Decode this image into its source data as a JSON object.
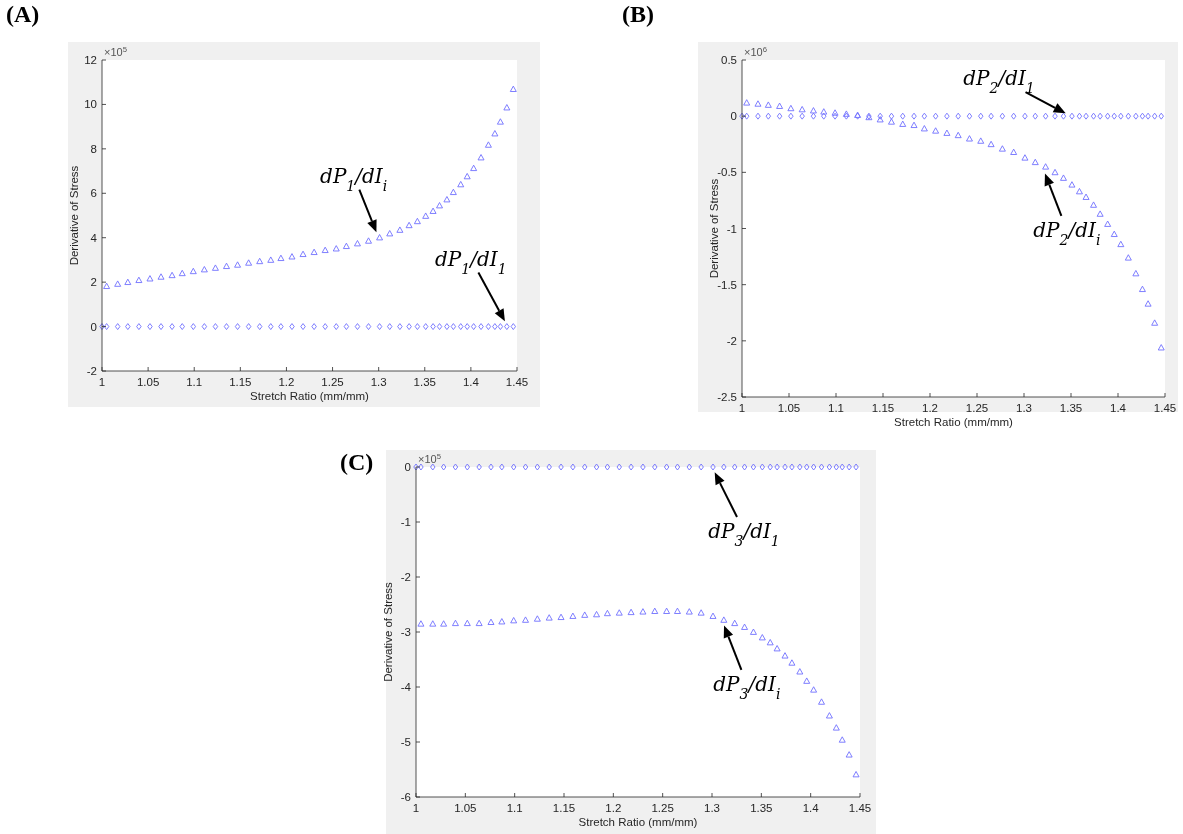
{
  "chart_data": [
    {
      "type": "scatter",
      "title": "(A)",
      "xlabel": "Stretch Ratio (mm/mm)",
      "ylabel": "Derivative of Stress",
      "annotations": [
        "×10$^{5}$",
        {
          "text": "dP$_{1}$/dI$_{i}$",
          "x": 1.3,
          "y": 4.0
        },
        {
          "text": "dP$_{1}$/dI$_{1}$",
          "x": 1.44,
          "y": 0
        }
      ],
      "x": [
        1.005,
        1.017,
        1.028,
        1.04,
        1.052,
        1.064,
        1.076,
        1.087,
        1.099,
        1.111,
        1.123,
        1.135,
        1.147,
        1.159,
        1.171,
        1.183,
        1.194,
        1.206,
        1.218,
        1.23,
        1.242,
        1.254,
        1.265,
        1.277,
        1.289,
        1.301,
        1.312,
        1.323,
        1.333,
        1.342,
        1.351,
        1.359,
        1.366,
        1.374,
        1.381,
        1.389,
        1.396,
        1.403,
        1.411,
        1.419,
        1.426,
        1.432,
        1.439,
        1.446
      ],
      "series": [
        {
          "color": "#7070ff",
          "marker": "triangle",
          "values": [
            1.82,
            1.92,
            2.0,
            2.09,
            2.16,
            2.24,
            2.31,
            2.4,
            2.49,
            2.57,
            2.64,
            2.72,
            2.78,
            2.87,
            2.94,
            3.0,
            3.08,
            3.15,
            3.26,
            3.35,
            3.44,
            3.51,
            3.62,
            3.74,
            3.86,
            4.01,
            4.19,
            4.35,
            4.56,
            4.74,
            4.98,
            5.2,
            5.45,
            5.72,
            6.05,
            6.4,
            6.76,
            7.13,
            7.61,
            8.18,
            8.69,
            9.22,
            9.86,
            10.69
          ]
        },
        {
          "color": "#7070ff",
          "marker": "diamond",
          "x": [
            1.0,
            1.005,
            1.017,
            1.028,
            1.04,
            1.052,
            1.064,
            1.076,
            1.087,
            1.099,
            1.111,
            1.123,
            1.135,
            1.147,
            1.159,
            1.171,
            1.183,
            1.194,
            1.206,
            1.218,
            1.23,
            1.242,
            1.254,
            1.265,
            1.277,
            1.289,
            1.301,
            1.312,
            1.323,
            1.333,
            1.342,
            1.351,
            1.359,
            1.366,
            1.374,
            1.381,
            1.389,
            1.396,
            1.403,
            1.411,
            1.419,
            1.426,
            1.432,
            1.439,
            1.446
          ],
          "values": [
            0,
            0,
            0,
            0,
            0,
            0,
            0,
            0,
            0,
            0,
            0,
            0,
            0,
            0,
            0,
            0,
            0,
            0,
            0,
            0,
            0,
            0,
            0,
            0,
            0,
            0,
            0,
            0,
            0,
            0,
            0,
            0,
            0,
            0,
            0,
            0,
            0,
            0,
            0,
            0,
            0,
            0,
            0,
            0,
            0
          ]
        }
      ],
      "xlim": [
        1,
        1.45
      ],
      "xticks": [
        1,
        1.05,
        1.1,
        1.15,
        1.2,
        1.25,
        1.3,
        1.35,
        1.4,
        1.45
      ],
      "ylim": [
        -2,
        12
      ],
      "yticks": [
        -2,
        0,
        2,
        4,
        6,
        8,
        10,
        12
      ]
    },
    {
      "type": "scatter",
      "title": "(B)",
      "xlabel": "Stretch Ratio (mm/mm)",
      "ylabel": "Derivative of Stress",
      "annotations": [
        "×10$^{6}$",
        {
          "text": "dP$_{2}$/dI$_{1}$",
          "x": 1.35,
          "y": 0
        },
        {
          "text": "dP$_{2}$/dI$_{i}$",
          "x": 1.32,
          "y": -0.46
        }
      ],
      "x": [
        1.005,
        1.017,
        1.028,
        1.04,
        1.052,
        1.064,
        1.076,
        1.087,
        1.099,
        1.111,
        1.123,
        1.135,
        1.147,
        1.159,
        1.171,
        1.183,
        1.194,
        1.206,
        1.218,
        1.23,
        1.242,
        1.254,
        1.265,
        1.277,
        1.289,
        1.301,
        1.312,
        1.323,
        1.333,
        1.342,
        1.351,
        1.359,
        1.366,
        1.374,
        1.381,
        1.389,
        1.396,
        1.403,
        1.411,
        1.419,
        1.426,
        1.432,
        1.439,
        1.446
      ],
      "series": [
        {
          "color": "#7070ff",
          "marker": "triangle",
          "values": [
            0.12,
            0.11,
            0.1,
            0.09,
            0.07,
            0.06,
            0.05,
            0.04,
            0.03,
            0.02,
            0.01,
            -0.01,
            -0.03,
            -0.05,
            -0.07,
            -0.08,
            -0.11,
            -0.13,
            -0.15,
            -0.17,
            -0.2,
            -0.22,
            -0.25,
            -0.29,
            -0.32,
            -0.37,
            -0.41,
            -0.45,
            -0.5,
            -0.55,
            -0.61,
            -0.67,
            -0.72,
            -0.79,
            -0.87,
            -0.96,
            -1.05,
            -1.14,
            -1.26,
            -1.4,
            -1.54,
            -1.67,
            -1.84,
            -2.06
          ]
        },
        {
          "color": "#7070ff",
          "marker": "diamond",
          "x": [
            1.0,
            1.005,
            1.017,
            1.028,
            1.04,
            1.052,
            1.064,
            1.076,
            1.087,
            1.099,
            1.111,
            1.123,
            1.135,
            1.147,
            1.159,
            1.171,
            1.183,
            1.194,
            1.206,
            1.218,
            1.23,
            1.242,
            1.254,
            1.265,
            1.277,
            1.289,
            1.301,
            1.312,
            1.323,
            1.333,
            1.342,
            1.351,
            1.359,
            1.366,
            1.374,
            1.381,
            1.389,
            1.396,
            1.403,
            1.411,
            1.419,
            1.426,
            1.432,
            1.439,
            1.446
          ],
          "values": [
            0,
            0,
            0,
            0,
            0,
            0,
            0,
            0,
            0,
            0,
            0,
            0,
            0,
            0,
            0,
            0,
            0,
            0,
            0,
            0,
            0,
            0,
            0,
            0,
            0,
            0,
            0,
            0,
            0,
            0,
            0,
            0,
            0,
            0,
            0,
            0,
            0,
            0,
            0,
            0,
            0,
            0,
            0,
            0,
            0
          ]
        }
      ],
      "xlim": [
        1,
        1.45
      ],
      "xticks": [
        1,
        1.05,
        1.1,
        1.15,
        1.2,
        1.25,
        1.3,
        1.35,
        1.4,
        1.45
      ],
      "ylim": [
        -2.5,
        0.5
      ],
      "yticks": [
        -2.5,
        -2,
        -1.5,
        -1,
        -0.5,
        0,
        0.5
      ]
    },
    {
      "type": "scatter",
      "title": "(C)",
      "xlabel": "Stretch Ratio (mm/mm)",
      "ylabel": "Derivative of Stress",
      "annotations": [
        "×10$^{5}$",
        {
          "text": "dP$_{3}$/dI$_{1}$",
          "x": 1.3,
          "y": 0
        },
        {
          "text": "dP$_{3}$/dI$_{i}$",
          "x": 1.31,
          "y": -2.78
        }
      ],
      "x": [
        1.005,
        1.017,
        1.028,
        1.04,
        1.052,
        1.064,
        1.076,
        1.087,
        1.099,
        1.111,
        1.123,
        1.135,
        1.147,
        1.159,
        1.171,
        1.183,
        1.194,
        1.206,
        1.218,
        1.23,
        1.242,
        1.254,
        1.265,
        1.277,
        1.289,
        1.301,
        1.312,
        1.323,
        1.333,
        1.342,
        1.351,
        1.359,
        1.366,
        1.374,
        1.381,
        1.389,
        1.396,
        1.403,
        1.411,
        1.419,
        1.426,
        1.432,
        1.439,
        1.446
      ],
      "series": [
        {
          "color": "#7070ff",
          "marker": "triangle",
          "values": [
            -2.85,
            -2.85,
            -2.85,
            -2.84,
            -2.84,
            -2.84,
            -2.82,
            -2.81,
            -2.79,
            -2.78,
            -2.76,
            -2.74,
            -2.73,
            -2.71,
            -2.69,
            -2.68,
            -2.66,
            -2.65,
            -2.64,
            -2.63,
            -2.62,
            -2.62,
            -2.62,
            -2.63,
            -2.65,
            -2.71,
            -2.78,
            -2.84,
            -2.91,
            -3.0,
            -3.1,
            -3.19,
            -3.3,
            -3.43,
            -3.56,
            -3.72,
            -3.89,
            -4.05,
            -4.27,
            -4.52,
            -4.74,
            -4.96,
            -5.23,
            -5.59
          ]
        },
        {
          "color": "#7070ff",
          "marker": "diamond",
          "x": [
            1.0,
            1.005,
            1.017,
            1.028,
            1.04,
            1.052,
            1.064,
            1.076,
            1.087,
            1.099,
            1.111,
            1.123,
            1.135,
            1.147,
            1.159,
            1.171,
            1.183,
            1.194,
            1.206,
            1.218,
            1.23,
            1.242,
            1.254,
            1.265,
            1.277,
            1.289,
            1.301,
            1.312,
            1.323,
            1.333,
            1.342,
            1.351,
            1.359,
            1.366,
            1.374,
            1.381,
            1.389,
            1.396,
            1.403,
            1.411,
            1.419,
            1.426,
            1.432,
            1.439,
            1.446
          ],
          "values": [
            0,
            0,
            0,
            0,
            0,
            0,
            0,
            0,
            0,
            0,
            0,
            0,
            0,
            0,
            0,
            0,
            0,
            0,
            0,
            0,
            0,
            0,
            0,
            0,
            0,
            0,
            0,
            0,
            0,
            0,
            0,
            0,
            0,
            0,
            0,
            0,
            0,
            0,
            0,
            0,
            0,
            0,
            0,
            0,
            0
          ]
        }
      ],
      "xlim": [
        1,
        1.45
      ],
      "xticks": [
        1,
        1.05,
        1.1,
        1.15,
        1.2,
        1.25,
        1.3,
        1.35,
        1.4,
        1.45
      ],
      "ylim": [
        -6,
        0
      ],
      "yticks": [
        -6,
        -5,
        -4,
        -3,
        -2,
        -1,
        0
      ]
    }
  ]
}
